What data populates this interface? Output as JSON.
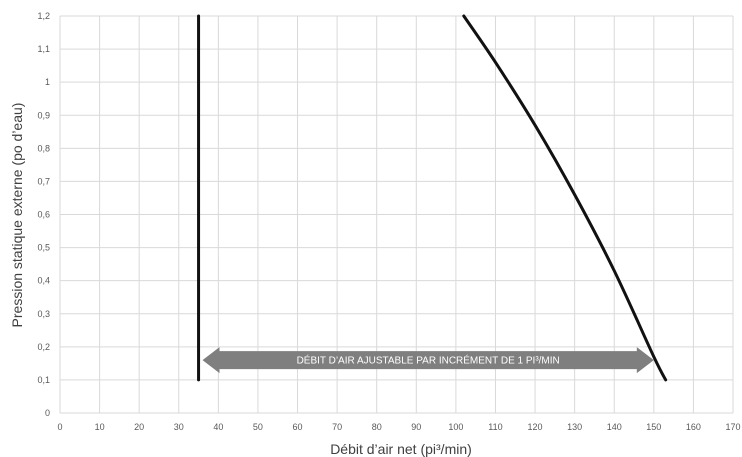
{
  "chart_data": {
    "type": "line",
    "xlabel": "Débit d’air net (pi³/min)",
    "ylabel": "Pression statique externe (po d’eau)",
    "xlim": [
      0,
      170
    ],
    "ylim": [
      0,
      1.2
    ],
    "x_ticks": [
      "0",
      "10",
      "20",
      "30",
      "40",
      "50",
      "60",
      "70",
      "80",
      "90",
      "100",
      "110",
      "120",
      "130",
      "140",
      "150",
      "160",
      "170"
    ],
    "y_ticks": [
      "0",
      "0,1",
      "0,2",
      "0,3",
      "0,4",
      "0,5",
      "0,6",
      "0,7",
      "0,8",
      "0,9",
      "1",
      "1,1",
      "1,2"
    ],
    "grid": true,
    "series": [
      {
        "x": [
          35,
          35
        ],
        "y": [
          0.1,
          1.2
        ],
        "color": "#111111"
      },
      {
        "x": [
          102,
          110,
          120,
          130,
          140,
          150,
          153
        ],
        "y": [
          1.2,
          1.06,
          0.87,
          0.66,
          0.43,
          0.17,
          0.1
        ],
        "color": "#111111"
      }
    ],
    "annotation": {
      "text": "DÉBIT D’AIR AJUSTABLE PAR INCRÉMENT DE 1 PI³/MIN",
      "from_x": 36,
      "to_x": 150,
      "y": 0.16,
      "color": "#7f7f7f"
    }
  }
}
